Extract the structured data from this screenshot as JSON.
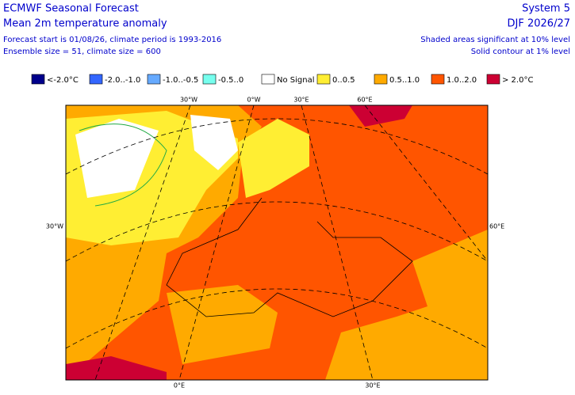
{
  "header": {
    "left": {
      "title": "ECMWF Seasonal Forecast",
      "subtitle": "Mean 2m temperature anomaly",
      "lines": [
        "Forecast start is 01/08/26, climate period is 1993-2016",
        "Ensemble size = 51, climate size = 600"
      ]
    },
    "right": {
      "title": "System 5",
      "subtitle": "DJF 2026/27",
      "lines": [
        "Shaded areas significant at 10% level",
        "Solid contour at 1% level"
      ]
    }
  },
  "legend": [
    {
      "label": "<-2.0°C",
      "color": "#00008b"
    },
    {
      "label": "-2.0..-1.0",
      "color": "#3366ff"
    },
    {
      "label": "-1.0..-0.5",
      "color": "#66aaff"
    },
    {
      "label": "-0.5..0",
      "color": "#77ffee"
    },
    {
      "label": "No Signal",
      "color": "#ffffff"
    },
    {
      "label": "0..0.5",
      "color": "#ffee33"
    },
    {
      "label": "0.5..1.0",
      "color": "#ffaa00"
    },
    {
      "label": "1.0..2.0",
      "color": "#ff5500"
    },
    {
      "label": "> 2.0°C",
      "color": "#cc0033"
    }
  ],
  "graticule_labels": [
    "30°W",
    "0°W",
    "30°E",
    "60°E",
    "30°W",
    "60°E",
    "0°E",
    "30°E"
  ]
}
